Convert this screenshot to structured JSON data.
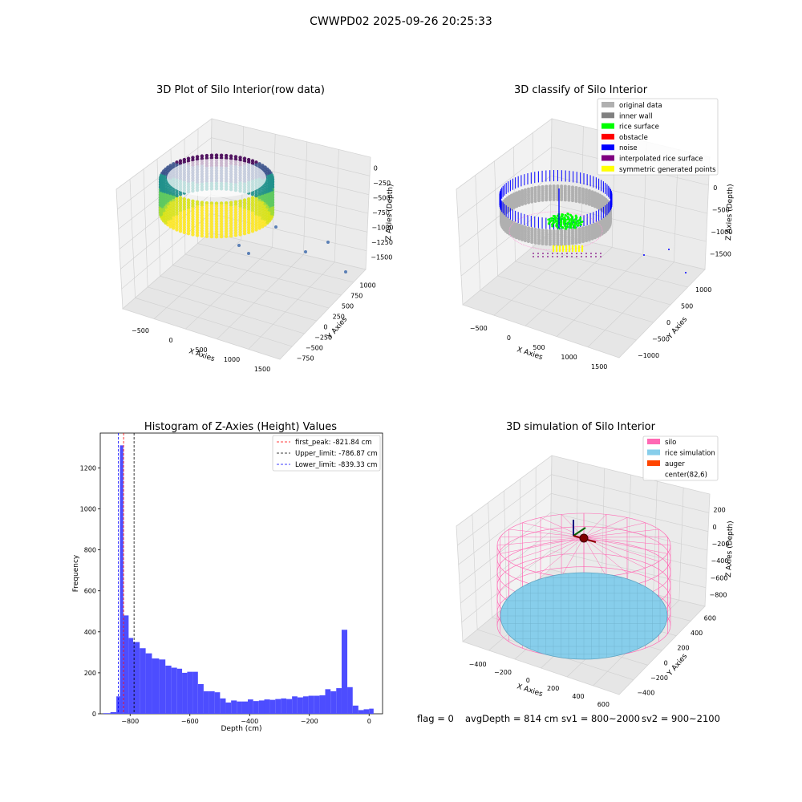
{
  "figure_title": "CWWPD02 2025-09-26 20:25:33",
  "status": {
    "flag": "flag = 0",
    "avg_depth": "avgDepth = 814 cm",
    "sv1": "sv1 = 800~2000",
    "sv2": "sv2 = 900~2100"
  },
  "chart_data": [
    {
      "type": "scatter",
      "title": "3D Plot of Silo Interior(row data)",
      "xlabel": "X Axies",
      "ylabel": "Y Axies",
      "zlabel": "Z Axies (Depth)",
      "x_ticks": [
        "−500",
        "0",
        "500",
        "1000",
        "1500"
      ],
      "y_ticks": [
        "1000",
        "750",
        "500",
        "250",
        "0",
        "−250",
        "−500",
        "−750"
      ],
      "z_ticks": [
        "0",
        "−250",
        "−500",
        "−750",
        "−1000",
        "−1250",
        "−1500"
      ],
      "colormap": "viridis"
    },
    {
      "type": "scatter",
      "title": "3D classify of Silo Interior",
      "zlabel": "Z Axies (Depth)",
      "xlabel": "X Axies",
      "ylabel": "Y Axies",
      "x_ticks": [
        "−500",
        "0",
        "500",
        "1000",
        "1500"
      ],
      "y_ticks": [
        "1000",
        "500",
        "0",
        "−500",
        "−1000"
      ],
      "z_ticks": [
        "0",
        "−500",
        "−1000",
        "−1500"
      ],
      "legend_position": "top-right",
      "legend": [
        {
          "label": "original data",
          "color": "#b0b0b0"
        },
        {
          "label": "inner wall",
          "color": "#808080"
        },
        {
          "label": "rice surface",
          "color": "#00ff00"
        },
        {
          "label": "obstacle",
          "color": "#ff0000"
        },
        {
          "label": "noise",
          "color": "#0000ff"
        },
        {
          "label": "interpolated rice surface",
          "color": "#800080"
        },
        {
          "label": "symmetric generated points",
          "color": "#ffff00"
        }
      ]
    },
    {
      "type": "bar",
      "title": "Histogram of Z-Axies (Height) Values",
      "xlabel": "Depth (cm)",
      "ylabel": "Frequency",
      "xlim": [
        -900,
        45
      ],
      "ylim": [
        0,
        1370
      ],
      "x_ticks": [
        -800,
        -600,
        -400,
        -200,
        0
      ],
      "y_ticks": [
        0,
        200,
        400,
        600,
        800,
        1000,
        1200
      ],
      "bar_color": "#4d4dff",
      "bins": [
        [
          -890,
          -866,
          3
        ],
        [
          -866,
          -846,
          8
        ],
        [
          -846,
          -834,
          85
        ],
        [
          -834,
          -823,
          1310
        ],
        [
          -823,
          -805,
          480
        ],
        [
          -805,
          -790,
          370
        ],
        [
          -790,
          -768,
          350
        ],
        [
          -768,
          -748,
          320
        ],
        [
          -748,
          -727,
          295
        ],
        [
          -727,
          -703,
          270
        ],
        [
          -703,
          -682,
          265
        ],
        [
          -682,
          -662,
          235
        ],
        [
          -662,
          -643,
          225
        ],
        [
          -643,
          -626,
          220
        ],
        [
          -626,
          -609,
          200
        ],
        [
          -609,
          -591,
          205
        ],
        [
          -591,
          -573,
          205
        ],
        [
          -573,
          -554,
          145
        ],
        [
          -554,
          -536,
          110
        ],
        [
          -536,
          -517,
          110
        ],
        [
          -517,
          -499,
          105
        ],
        [
          -499,
          -480,
          75
        ],
        [
          -480,
          -462,
          55
        ],
        [
          -462,
          -443,
          65
        ],
        [
          -443,
          -425,
          60
        ],
        [
          -425,
          -406,
          60
        ],
        [
          -406,
          -388,
          70
        ],
        [
          -388,
          -369,
          62
        ],
        [
          -369,
          -351,
          65
        ],
        [
          -351,
          -332,
          70
        ],
        [
          -332,
          -314,
          68
        ],
        [
          -314,
          -295,
          72
        ],
        [
          -295,
          -277,
          75
        ],
        [
          -277,
          -258,
          72
        ],
        [
          -258,
          -240,
          85
        ],
        [
          -240,
          -221,
          80
        ],
        [
          -221,
          -203,
          85
        ],
        [
          -203,
          -184,
          88
        ],
        [
          -184,
          -166,
          88
        ],
        [
          -166,
          -147,
          90
        ],
        [
          -147,
          -129,
          120
        ],
        [
          -129,
          -110,
          110
        ],
        [
          -110,
          -92,
          125
        ],
        [
          -92,
          -73,
          410
        ],
        [
          -73,
          -55,
          130
        ],
        [
          -55,
          -36,
          40
        ],
        [
          -36,
          -18,
          18
        ],
        [
          -18,
          0,
          22
        ],
        [
          0,
          15,
          25
        ]
      ],
      "lines": [
        {
          "label": "first_peak: -821.84 cm",
          "x": -821.84,
          "color": "#ff0000"
        },
        {
          "label": "Upper_limit: -786.87 cm",
          "x": -786.87,
          "color": "#000000"
        },
        {
          "label": "Lower_limit: -839.33 cm",
          "x": -839.33,
          "color": "#0000ff"
        }
      ],
      "legend_position": "top-right"
    },
    {
      "type": "scatter",
      "title": "3D simulation of Silo Interior",
      "xlabel": "X Axies",
      "ylabel": "Y Axies",
      "zlabel": "Z Axies (Depth)",
      "x_ticks": [
        "−400",
        "−200",
        "0",
        "200",
        "400",
        "600"
      ],
      "y_ticks": [
        "600",
        "400",
        "200",
        "0",
        "−200",
        "−400"
      ],
      "z_ticks": [
        "200",
        "0",
        "−200",
        "−400",
        "−600",
        "−800"
      ],
      "legend_position": "top-right",
      "legend": [
        {
          "label": "silo",
          "color": "#ff69b4"
        },
        {
          "label": "rice simulation",
          "color": "#87ceeb"
        },
        {
          "label": "auger",
          "color": "#ff4500"
        },
        {
          "label": "center(82,6)",
          "color": ""
        }
      ]
    }
  ]
}
